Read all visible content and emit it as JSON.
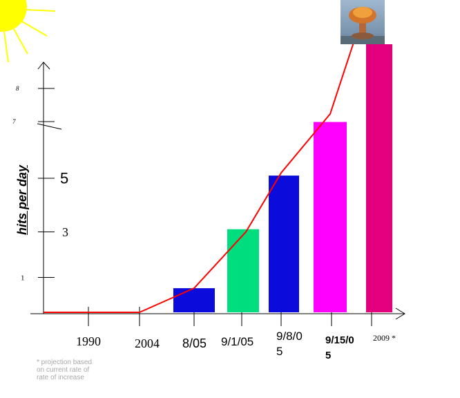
{
  "chart_data": {
    "type": "bar",
    "categories": [
      "1990",
      "2004",
      "8/05",
      "9/1/05",
      "9/8/05",
      "9/15/05",
      "2009 *"
    ],
    "values": [
      0,
      0,
      0.9,
      3.1,
      5.1,
      7.1,
      10
    ],
    "bar_colors": [
      "",
      "",
      "#0b0bdc",
      "#00dd7f",
      "#0b0bdc",
      "#ff00ff",
      "#e3007f"
    ],
    "line_values": [
      0,
      0,
      0.9,
      3.0,
      5.2,
      7.4,
      10.3
    ],
    "line_color": "#ff0000",
    "ylabel": "hits per day",
    "y_ticks": [
      {
        "label": "1",
        "value": 1.3
      },
      {
        "label": "3",
        "value": 3
      },
      {
        "label": "5",
        "value": 5
      },
      {
        "label": "7",
        "value": 7.2
      },
      {
        "label": "8",
        "value": 8.7
      }
    ],
    "x_tick_labels": [
      {
        "lines": [
          "1990"
        ]
      },
      {
        "lines": [
          "2004"
        ]
      },
      {
        "lines": [
          "8/05"
        ]
      },
      {
        "lines": [
          "9/1/05"
        ]
      },
      {
        "lines": [
          "9/8/0",
          "5"
        ]
      },
      {
        "lines": [
          "9/15/0",
          "5"
        ]
      },
      {
        "lines": [
          "2009 *"
        ]
      }
    ],
    "footnote": [
      "* projection based",
      "on current rate of",
      "rate of increase"
    ],
    "icons": [
      "sun-icon",
      "mushroom-cloud-icon"
    ]
  }
}
